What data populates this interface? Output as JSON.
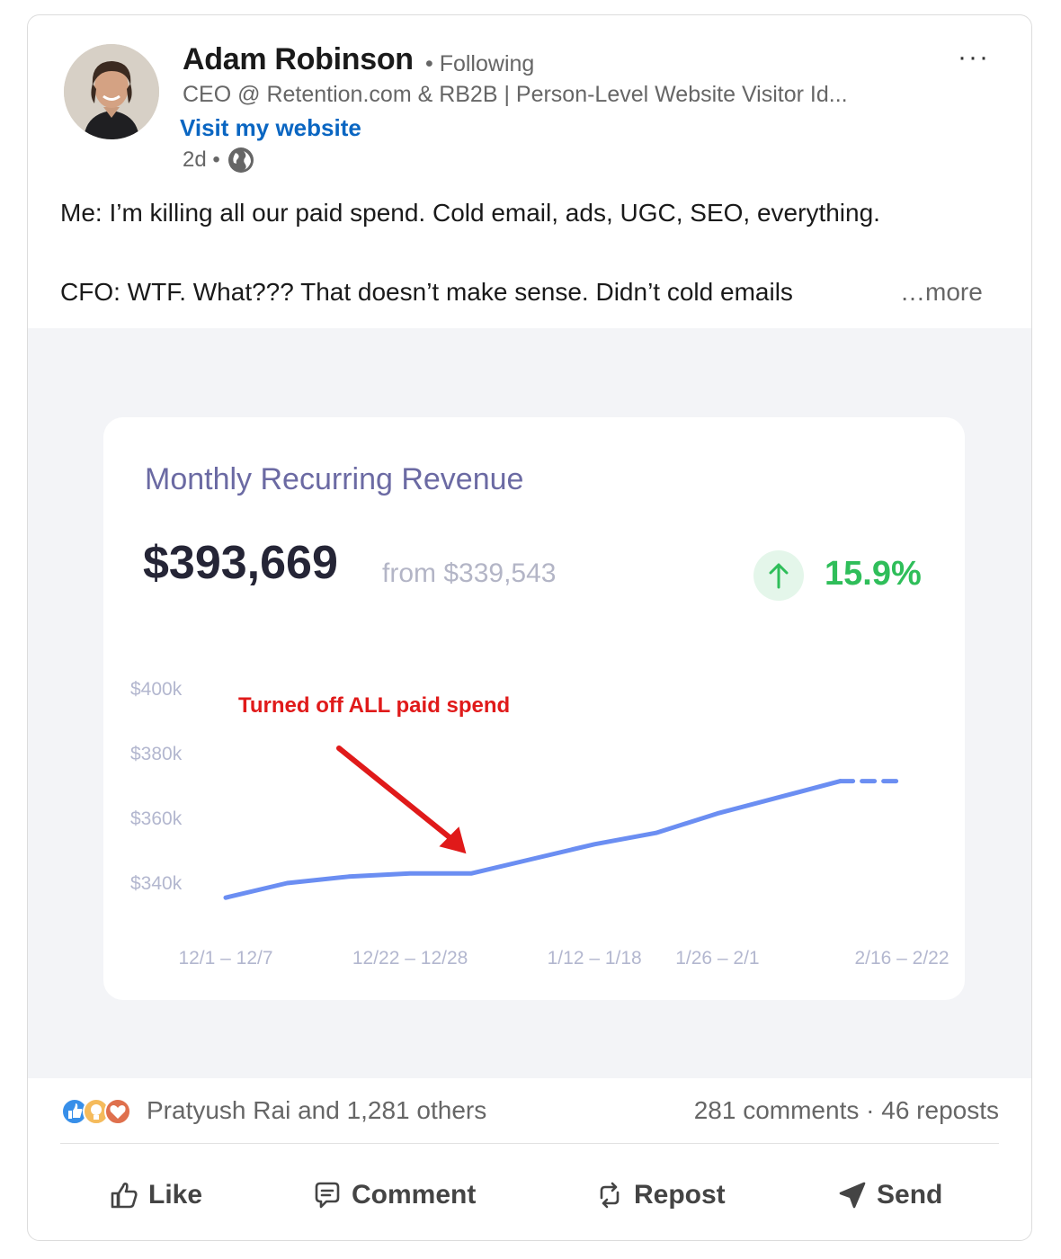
{
  "author": {
    "name": "Adam Robinson",
    "follow_status": "• Following",
    "headline": "CEO @ Retention.com & RB2B | Person-Level Website Visitor Id...",
    "website_link": "Visit my website",
    "post_age": "2d •",
    "avatar_icon": "user-avatar",
    "visibility_icon": "globe-icon"
  },
  "menu": {
    "label": "···"
  },
  "post": {
    "line1": "Me: I’m killing all our paid spend. Cold email, ads, UGC, SEO, everything.",
    "line2": "CFO: WTF. What??? That doesn’t make sense. Didn’t cold emails",
    "see_more": "…more"
  },
  "metric": {
    "title": "Monthly Recurring Revenue",
    "value": "$393,669",
    "from": "from $339,543",
    "change": "15.9%",
    "trend_icon": "arrow-up-icon",
    "accent_color": "#2fbe5a"
  },
  "chart_data": {
    "type": "line",
    "title": "Monthly Recurring Revenue",
    "x_tick_labels": [
      "12/1 – 12/7",
      "12/22 – 12/28",
      "1/12 – 1/18",
      "1/26 – 2/1",
      "2/16 – 2/22"
    ],
    "y_tick_labels": [
      "$400k",
      "$380k",
      "$360k",
      "$340k"
    ],
    "y_ticks": [
      400,
      380,
      360,
      340
    ],
    "ylim": [
      335,
      405
    ],
    "x_count": 12,
    "tick_indices": [
      0,
      3,
      6,
      8,
      11
    ],
    "series": [
      {
        "values": [
          335.5,
          340,
          342,
          343,
          343,
          347.5,
          352,
          355.5,
          361.5,
          366.5,
          371.5,
          371.5
        ],
        "dashed_from_index": 10,
        "color": "#6b8ef2"
      }
    ],
    "annotation": {
      "text": "Turned off ALL paid spend",
      "target_index": 4,
      "color": "#e01a1a"
    },
    "grid": false
  },
  "social": {
    "reactors": "Pratyush Rai and 1,281 others",
    "engagement": "281 comments · 46 reposts",
    "reaction_icons": [
      "like-icon",
      "insightful-icon",
      "love-icon"
    ]
  },
  "actions": {
    "like": "Like",
    "comment": "Comment",
    "repost": "Repost",
    "send": "Send"
  }
}
